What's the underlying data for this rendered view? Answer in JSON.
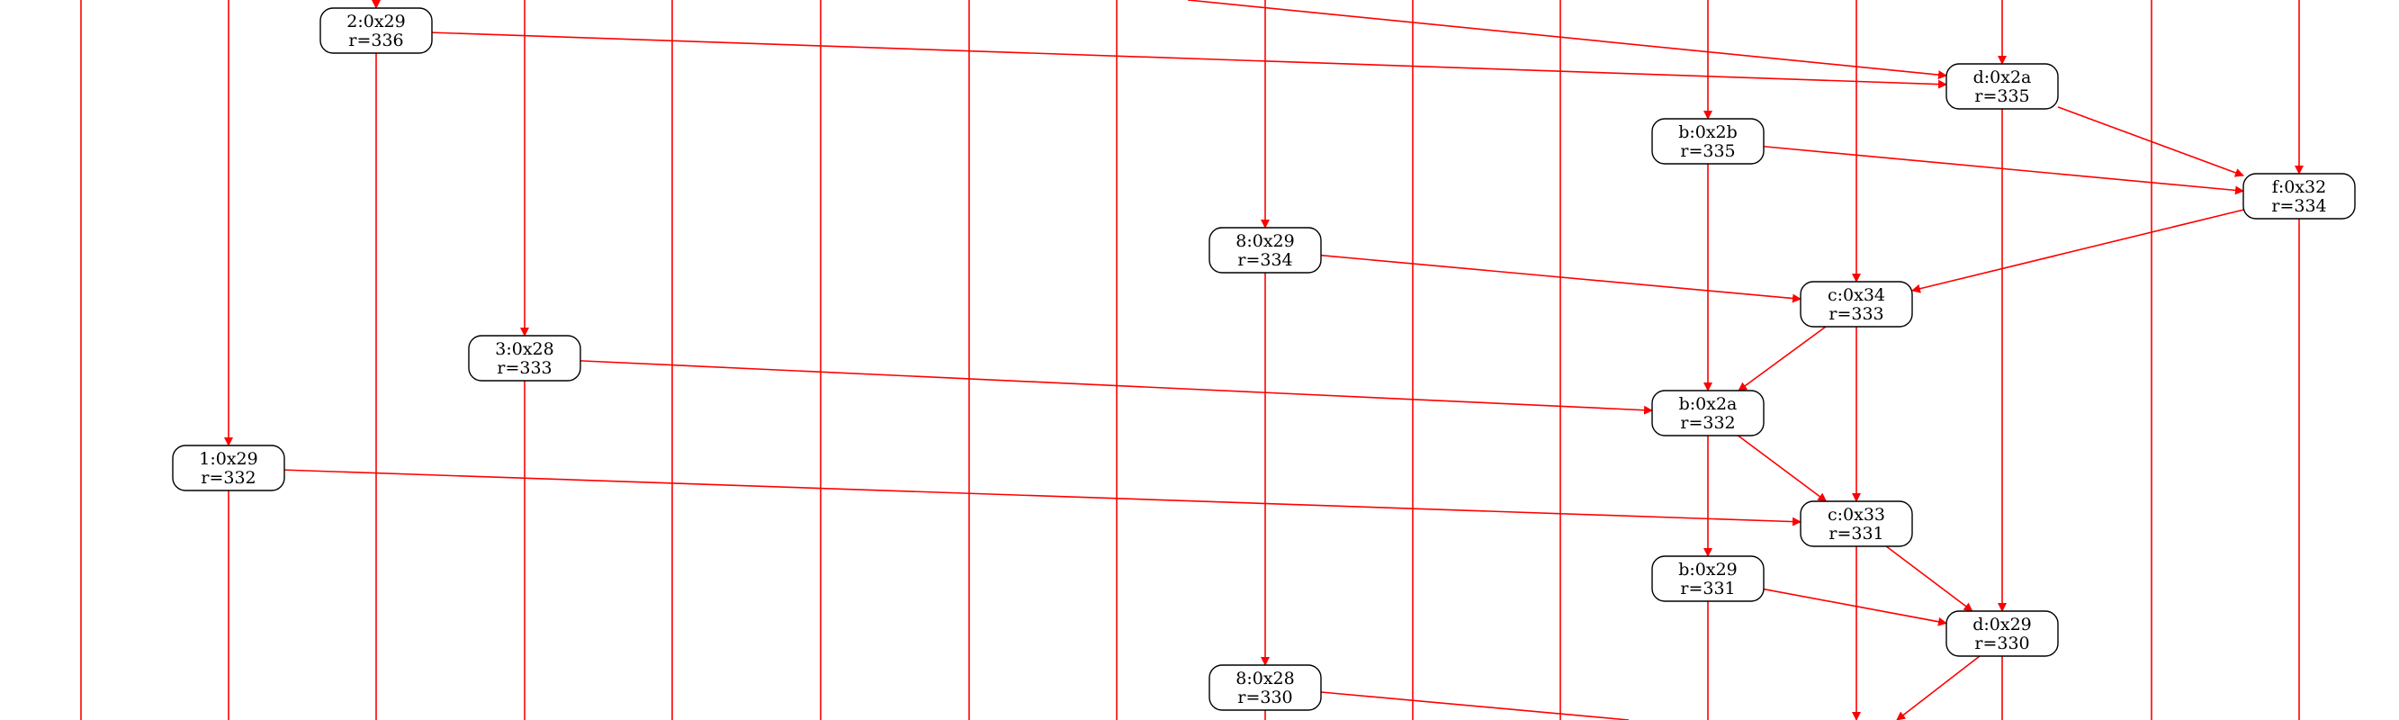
{
  "colors": {
    "edge": "#ff0000",
    "node_border": "#000000",
    "node_fill": "#ffffff",
    "text": "#000000"
  },
  "nodes": [
    {
      "id": "n2_29",
      "line1": "2:0x29",
      "line2": "r=336"
    },
    {
      "id": "nd_2a",
      "line1": "d:0x2a",
      "line2": "r=335"
    },
    {
      "id": "nb_2b",
      "line1": "b:0x2b",
      "line2": "r=335"
    },
    {
      "id": "nf_32",
      "line1": "f:0x32",
      "line2": "r=334"
    },
    {
      "id": "n8_29",
      "line1": "8:0x29",
      "line2": "r=334"
    },
    {
      "id": "nc_34",
      "line1": "c:0x34",
      "line2": "r=333"
    },
    {
      "id": "n3_28",
      "line1": "3:0x28",
      "line2": "r=333"
    },
    {
      "id": "nb_2a",
      "line1": "b:0x2a",
      "line2": "r=332"
    },
    {
      "id": "n1_29",
      "line1": "1:0x29",
      "line2": "r=332"
    },
    {
      "id": "nc_33",
      "line1": "c:0x33",
      "line2": "r=331"
    },
    {
      "id": "nb_29",
      "line1": "b:0x29",
      "line2": "r=331"
    },
    {
      "id": "nd_29",
      "line1": "d:0x29",
      "line2": "r=330"
    },
    {
      "id": "n8_28",
      "line1": "8:0x28",
      "line2": "r=330"
    }
  ]
}
